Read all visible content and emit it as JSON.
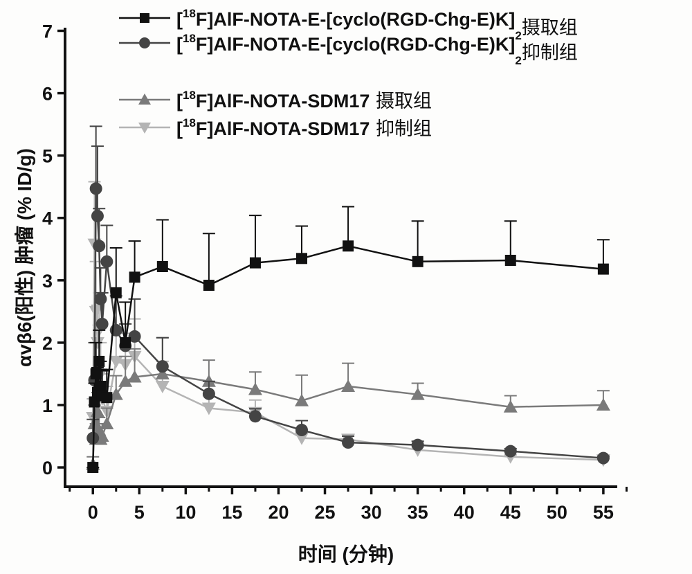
{
  "chart_data": {
    "type": "line",
    "title": "",
    "xlabel": "时间 (分钟)",
    "ylabel": "αvβ6(阳性) 肿瘤 (% ID/g)",
    "xlim": [
      -3,
      56.5
    ],
    "ylim": [
      -0.31,
      7.05
    ],
    "xticks": [
      0,
      5,
      10,
      15,
      20,
      25,
      30,
      35,
      40,
      45,
      50,
      55
    ],
    "yticks": [
      0,
      1,
      2,
      3,
      4,
      5,
      6,
      7
    ],
    "grid": false,
    "legend_position": "top-right",
    "series": [
      {
        "name": "[18F]AlF-NOTA-E-[cyclo(RGD-Chg-E)K]2摄取组",
        "legend": {
          "pre": "[",
          "sup": "18",
          "main": "F]AlF-NOTA-E-[cyclo(RGD-Chg-E)K]",
          "sub": "2",
          "suffix": "摄取组"
        },
        "marker": "square",
        "color": "#111111",
        "x": [
          0,
          0.17,
          0.33,
          0.5,
          0.67,
          0.83,
          1,
          1.5,
          2.5,
          3.5,
          4.5,
          7.5,
          12.5,
          17.5,
          22.5,
          27.5,
          35,
          45,
          55
        ],
        "y": [
          0,
          1.05,
          1.5,
          1.2,
          1.7,
          1.3,
          1.15,
          1.12,
          2.8,
          2.0,
          3.05,
          3.22,
          2.92,
          3.28,
          3.35,
          3.55,
          3.3,
          3.32,
          3.18
        ],
        "err": [
          0,
          0.3,
          0.5,
          0.4,
          0.5,
          0.4,
          0.4,
          0.45,
          0.72,
          0.65,
          0.58,
          0.75,
          0.83,
          0.76,
          0.52,
          0.63,
          0.65,
          0.63,
          0.47
        ]
      },
      {
        "name": "[18F]AlF-NOTA-E-[cyclo(RGD-Chg-E)K]2抑制组",
        "legend": {
          "pre": "[",
          "sup": "18",
          "main": "F]AlF-NOTA-E-[cyclo(RGD-Chg-E)K]",
          "sub": "2",
          "suffix": "抑制组"
        },
        "marker": "circle",
        "color": "#444444",
        "x": [
          0,
          0.17,
          0.33,
          0.5,
          0.67,
          0.83,
          1,
          1.5,
          2.5,
          3.5,
          4.5,
          7.5,
          12.5,
          17.5,
          22.5,
          27.5,
          35,
          45,
          55
        ],
        "y": [
          0.47,
          1.4,
          4.47,
          4.03,
          3.55,
          2.7,
          2.3,
          3.3,
          2.2,
          1.95,
          2.1,
          1.62,
          1.18,
          0.82,
          0.6,
          0.4,
          0.36,
          0.26,
          0.15
        ],
        "err": [
          0.3,
          0.6,
          1.0,
          1.12,
          0.6,
          0.5,
          0.5,
          0.58,
          0.55,
          0.35,
          0.6,
          0.46,
          0.2,
          0.12,
          0.15,
          0.1,
          0.06,
          0.04,
          0.03
        ]
      },
      {
        "name": "[18F]AlF-NOTA-SDM17 摄取组",
        "legend": {
          "pre": "[",
          "sup": "18",
          "main": "F]AlF-NOTA-SDM17",
          "sub": "",
          "suffix": " 摄取组"
        },
        "marker": "triangle-up",
        "color": "#7a7a7a",
        "x": [
          0,
          0.17,
          0.33,
          0.5,
          0.67,
          0.83,
          1,
          1.5,
          2.5,
          3.5,
          4.5,
          7.5,
          12.5,
          17.5,
          22.5,
          27.5,
          35,
          45,
          55
        ],
        "y": [
          0.05,
          0.7,
          0.45,
          0.9,
          0.6,
          0.45,
          0.5,
          0.7,
          1.17,
          1.38,
          1.45,
          1.5,
          1.38,
          1.25,
          1.07,
          1.3,
          1.17,
          0.97,
          1.0
        ],
        "err": [
          0.12,
          0.3,
          0.25,
          0.3,
          0.2,
          0.2,
          0.2,
          0.25,
          0.3,
          0.4,
          0.45,
          0.58,
          0.34,
          0.28,
          0.41,
          0.37,
          0.18,
          0.18,
          0.23
        ]
      },
      {
        "name": "[18F]AlF-NOTA-SDM17 抑制组",
        "legend": {
          "pre": "[",
          "sup": "18",
          "main": "F]AlF-NOTA-SDM17",
          "sub": "",
          "suffix": " 抑制组"
        },
        "marker": "triangle-down",
        "color": "#b4b4b4",
        "x": [
          0,
          0.17,
          0.33,
          0.5,
          0.67,
          0.83,
          1,
          1.5,
          2.5,
          3.5,
          4.5,
          7.5,
          12.5,
          17.5,
          22.5,
          27.5,
          35,
          45,
          55
        ],
        "y": [
          0.8,
          3.58,
          2.5,
          2.0,
          2.2,
          1.5,
          1.1,
          0.9,
          1.7,
          1.65,
          1.78,
          1.3,
          0.95,
          0.88,
          0.47,
          0.45,
          0.28,
          0.17,
          0.12
        ],
        "err": [
          0.3,
          1.0,
          0.8,
          0.6,
          0.6,
          0.5,
          0.4,
          0.4,
          0.5,
          0.5,
          0.6,
          0.4,
          0.2,
          0.2,
          0.1,
          0.08,
          0.05,
          0.03,
          0.03
        ]
      }
    ]
  }
}
